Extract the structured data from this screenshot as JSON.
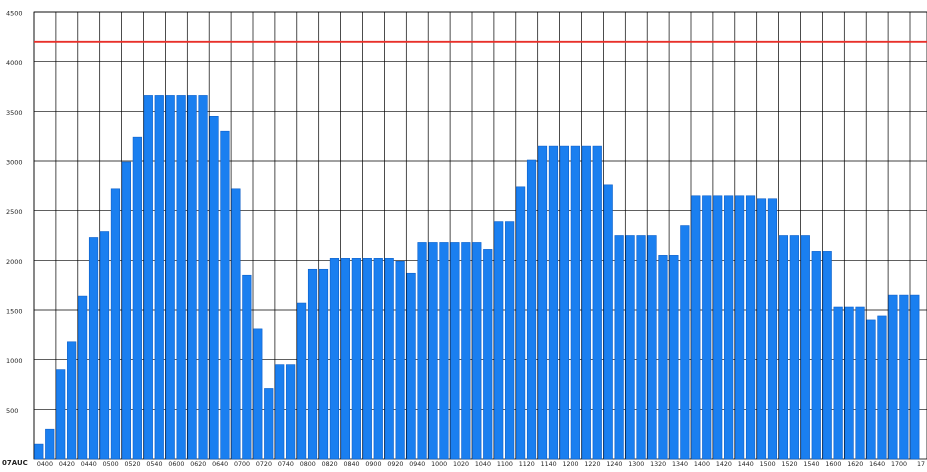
{
  "chart_data": {
    "type": "bar",
    "title": "",
    "xlabel": "",
    "ylabel": "",
    "date_label": "07AUC",
    "ylim": [
      0,
      4500
    ],
    "y_ticks": [
      500,
      1000,
      1500,
      2000,
      2500,
      3000,
      3500,
      4000,
      4500
    ],
    "grid": true,
    "threshold": 4200,
    "x_tick_labels": [
      "0400",
      "0420",
      "0440",
      "0500",
      "0520",
      "0540",
      "0600",
      "0620",
      "0640",
      "0700",
      "0720",
      "0740",
      "0800",
      "0820",
      "0840",
      "0900",
      "0920",
      "0940",
      "1000",
      "1020",
      "1040",
      "1100",
      "1120",
      "1140",
      "1200",
      "1220",
      "1240",
      "1300",
      "1320",
      "1340",
      "1400",
      "1420",
      "1440",
      "1500",
      "1520",
      "1540",
      "1600",
      "1620",
      "1640",
      "1700",
      "17"
    ],
    "values": [
      150,
      300,
      900,
      1180,
      1640,
      2230,
      2290,
      2720,
      2990,
      3240,
      3660,
      3660,
      3660,
      3660,
      3660,
      3660,
      3450,
      3300,
      2720,
      1850,
      1310,
      710,
      950,
      950,
      1570,
      1910,
      1910,
      2020,
      2020,
      2020,
      2020,
      2020,
      2020,
      1990,
      1870,
      2180,
      2180,
      2180,
      2180,
      2180,
      2180,
      2110,
      2390,
      2390,
      2740,
      3010,
      3150,
      3150,
      3150,
      3150,
      3150,
      3150,
      2760,
      2250,
      2250,
      2250,
      2250,
      2050,
      2050,
      2350,
      2650,
      2650,
      2650,
      2650,
      2650,
      2650,
      2620,
      2620,
      2250,
      2250,
      2250,
      2090,
      2090,
      1530,
      1530,
      1530,
      1400,
      1440,
      1650,
      1650,
      1650
    ],
    "colors": {
      "bar": "#1a7ff0",
      "bar_edge": "#0d5fc8",
      "threshold": "#e8302a",
      "grid": "#000000",
      "text": "#222222"
    }
  }
}
